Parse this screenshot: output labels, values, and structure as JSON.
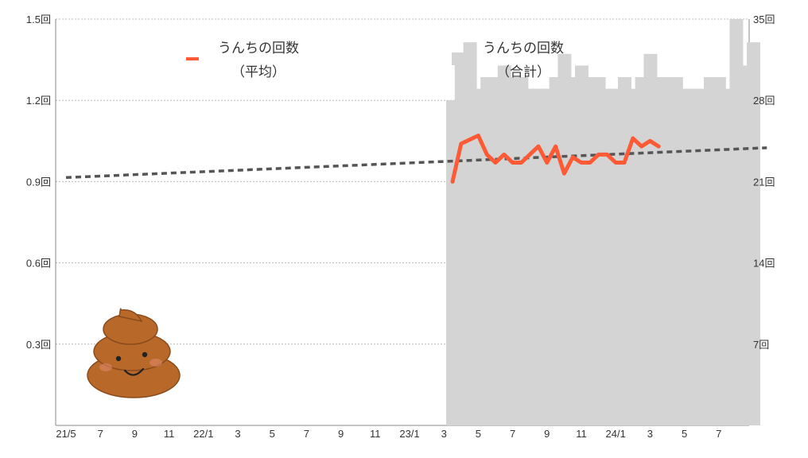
{
  "chart_data": {
    "type": "bar+line",
    "x_ticks": [
      "21/5",
      "7",
      "9",
      "11",
      "22/1",
      "3",
      "5",
      "7",
      "9",
      "11",
      "23/1",
      "3",
      "5",
      "7",
      "9",
      "11",
      "24/1",
      "3",
      "5",
      "7"
    ],
    "left_axis": {
      "ticks": [
        "1.5回",
        "1.2回",
        "0.9回",
        "0.6回",
        "0.3回"
      ],
      "ylim": [
        0,
        1.5
      ]
    },
    "right_axis": {
      "ticks": [
        "35回",
        "28回",
        "21回",
        "14回",
        "7回"
      ],
      "ylim": [
        0,
        35
      ]
    },
    "grid": true,
    "legend": [
      {
        "label": "うんちの回数",
        "sub": "（平均）",
        "color": "#ff5a36",
        "position": "top-left"
      },
      {
        "label": "うんちの回数",
        "sub": "（合計）",
        "color": "#d4d4d4",
        "position": "top-center"
      }
    ],
    "series": [
      {
        "name": "うんちの回数（合計）",
        "kind": "bar",
        "axis": "right",
        "color": "#d4d4d4",
        "x": [
          22.5,
          23.0,
          23.5,
          24.0,
          24.5,
          25.0,
          25.5,
          26.0,
          26.5,
          27.0,
          27.5,
          28.0,
          28.5,
          29.0,
          29.5,
          30.0,
          30.5,
          31.0,
          31.5,
          32.0,
          32.5,
          33.0,
          33.5,
          34.0,
          34.5,
          35.0,
          35.5,
          36.0,
          36.5,
          37.0,
          37.5,
          38.0,
          38.5,
          39.0,
          39.5,
          40.0
        ],
        "values": [
          28,
          32,
          33,
          29,
          30,
          30,
          31,
          30,
          30,
          29,
          29,
          29,
          30,
          32,
          30,
          31,
          30,
          30,
          29,
          29,
          30,
          29,
          30,
          32,
          30,
          30,
          30,
          29,
          29,
          29,
          30,
          30,
          29,
          35,
          31,
          33
        ]
      },
      {
        "name": "うんちの回数（平均）",
        "kind": "line",
        "axis": "left",
        "color": "#ff5a36",
        "x": [
          22.5,
          23,
          24,
          24.5,
          25,
          25.5,
          26,
          26.5,
          27,
          27.5,
          28,
          28.5,
          29,
          29.5,
          30,
          30.5,
          31,
          31.5,
          32,
          32.5,
          33,
          33.5,
          34,
          34.5
        ],
        "values": [
          0.9,
          1.04,
          1.07,
          1.0,
          0.97,
          1.0,
          0.97,
          0.97,
          1.0,
          1.03,
          0.97,
          1.03,
          0.93,
          0.99,
          0.97,
          0.97,
          1.0,
          1.0,
          0.97,
          0.97,
          1.06,
          1.03,
          1.05,
          1.03
        ]
      },
      {
        "name": "trend",
        "kind": "trendline",
        "axis": "left",
        "color": "#555555",
        "x": [
          0,
          40.8
        ],
        "values": [
          0.915,
          1.025
        ]
      }
    ]
  },
  "illustration": {
    "name": "poop-illustration",
    "color": "#b8692a"
  }
}
